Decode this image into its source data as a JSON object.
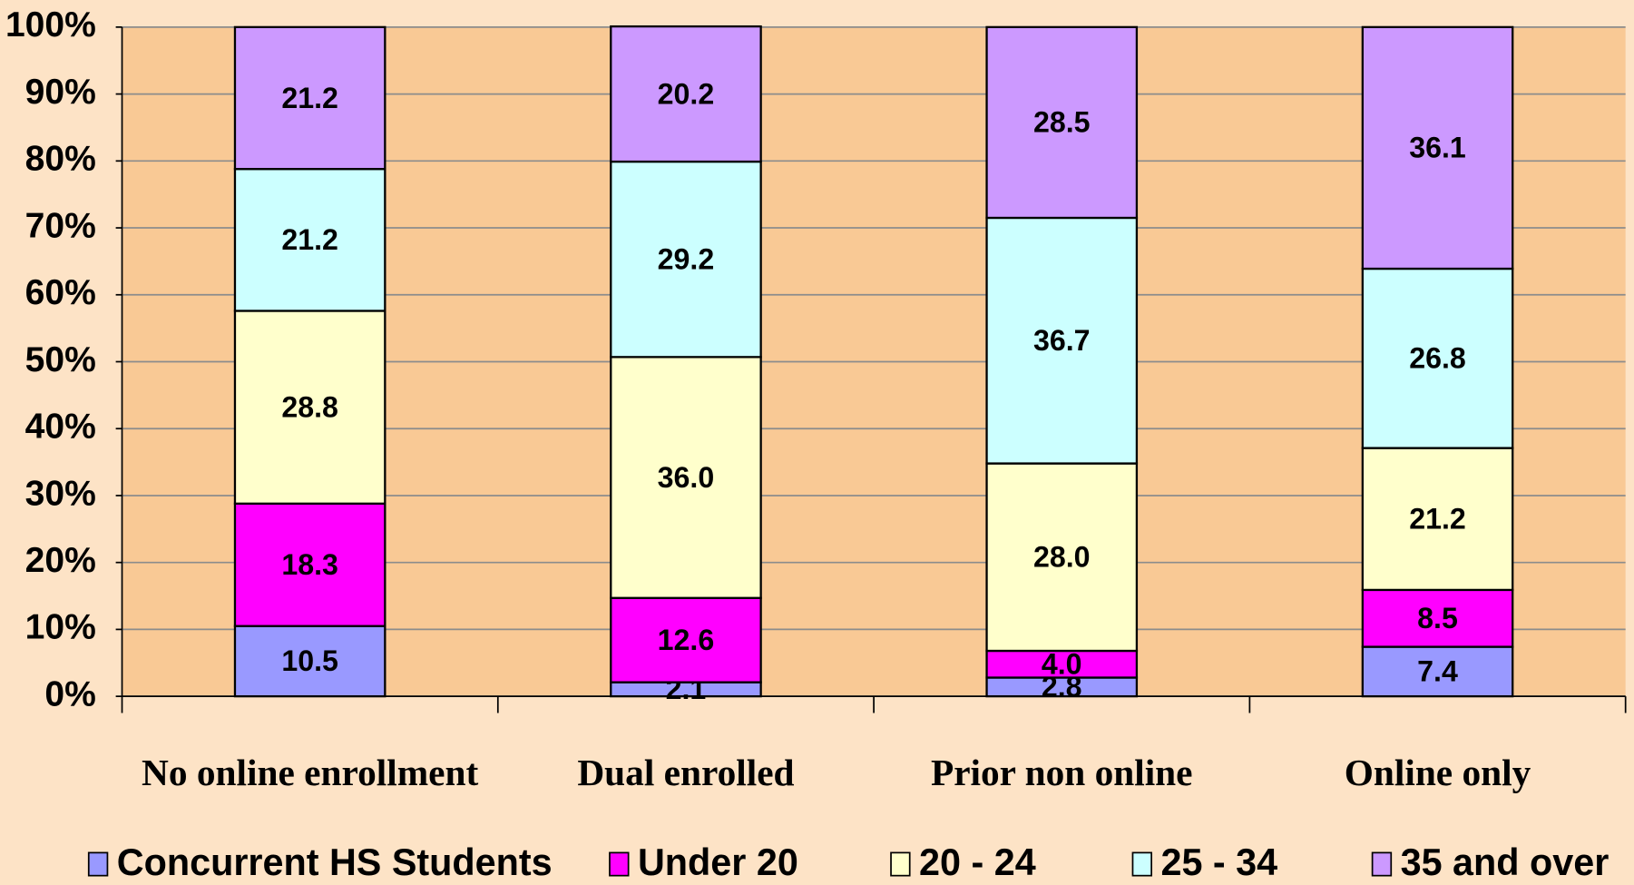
{
  "chart_data": {
    "type": "stacked_bar",
    "categories": [
      "No online enrollment",
      "Dual enrolled",
      "Prior non online",
      "Online only"
    ],
    "series": [
      {
        "name": "Concurrent HS Students",
        "color": "#9999ff",
        "values": [
          10.5,
          2.1,
          2.8,
          7.4
        ],
        "value_labels": [
          "10.5",
          "2.1",
          "2.8",
          "7.4"
        ]
      },
      {
        "name": "Under 20",
        "color": "#ff00ff",
        "values": [
          18.3,
          12.6,
          4.0,
          8.5
        ],
        "value_labels": [
          "18.3",
          "12.6",
          "4.0",
          "8.5"
        ]
      },
      {
        "name": "20 - 24",
        "color": "#ffffcc",
        "values": [
          28.8,
          36.0,
          28.0,
          21.2
        ],
        "value_labels": [
          "28.8",
          "36.0",
          "28.0",
          "21.2"
        ]
      },
      {
        "name": "25 - 34",
        "color": "#ccffff",
        "values": [
          21.2,
          29.2,
          36.7,
          26.8
        ],
        "value_labels": [
          "21.2",
          "29.2",
          "36.7",
          "26.8"
        ]
      },
      {
        "name": "35 and over",
        "color": "#cc99ff",
        "values": [
          21.2,
          20.2,
          28.5,
          36.1
        ],
        "value_labels": [
          "21.2",
          "20.2",
          "28.5",
          "36.1"
        ]
      }
    ],
    "ylim": [
      0,
      100
    ],
    "yticks": [
      {
        "value": 0,
        "label": "0%"
      },
      {
        "value": 10,
        "label": "10%"
      },
      {
        "value": 20,
        "label": "20%"
      },
      {
        "value": 30,
        "label": "30%"
      },
      {
        "value": 40,
        "label": "40%"
      },
      {
        "value": 50,
        "label": "50%"
      },
      {
        "value": 60,
        "label": "60%"
      },
      {
        "value": 70,
        "label": "70%"
      },
      {
        "value": 80,
        "label": "80%"
      },
      {
        "value": 90,
        "label": "90%"
      },
      {
        "value": 100,
        "label": "100%"
      }
    ],
    "grid": true,
    "legend": "bottom"
  }
}
